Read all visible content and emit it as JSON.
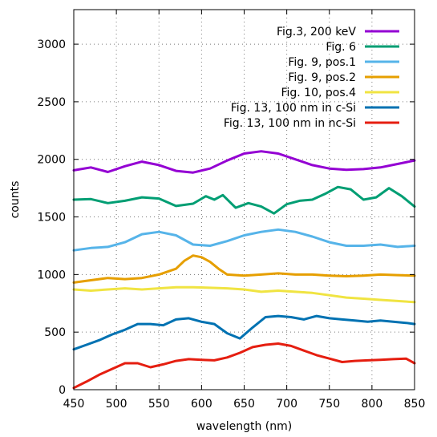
{
  "chart_data": {
    "type": "line",
    "title": "",
    "xlabel": "wavelength (nm)",
    "ylabel": "counts",
    "xlim": [
      450,
      850
    ],
    "ylim": [
      0,
      3300
    ],
    "xticks": [
      450,
      500,
      550,
      600,
      650,
      700,
      750,
      800,
      850
    ],
    "yticks": [
      0,
      500,
      1000,
      1500,
      2000,
      2500,
      3000
    ],
    "grid": true,
    "legend_position": "top-right",
    "series": [
      {
        "name": "Fig.3, 200 keV",
        "color": "#9400d3",
        "x": [
          450,
          470,
          490,
          510,
          530,
          550,
          570,
          590,
          610,
          630,
          650,
          670,
          690,
          710,
          730,
          750,
          770,
          790,
          810,
          830,
          850
        ],
        "y": [
          1905,
          1930,
          1890,
          1940,
          1980,
          1950,
          1900,
          1885,
          1920,
          1990,
          2050,
          2070,
          2050,
          2000,
          1950,
          1920,
          1910,
          1915,
          1930,
          1960,
          1990
        ]
      },
      {
        "name": "Fig. 6",
        "color": "#009e73",
        "x": [
          450,
          470,
          490,
          510,
          530,
          550,
          570,
          590,
          605,
          615,
          625,
          640,
          655,
          670,
          685,
          700,
          715,
          730,
          745,
          760,
          775,
          790,
          805,
          820,
          835,
          850
        ],
        "y": [
          1650,
          1655,
          1620,
          1640,
          1670,
          1660,
          1595,
          1615,
          1680,
          1650,
          1690,
          1580,
          1620,
          1590,
          1530,
          1610,
          1640,
          1650,
          1700,
          1760,
          1740,
          1650,
          1670,
          1750,
          1680,
          1590
        ]
      },
      {
        "name": "Fig. 9, pos.1",
        "color": "#56b4e9",
        "x": [
          450,
          470,
          490,
          510,
          530,
          550,
          570,
          590,
          610,
          630,
          650,
          670,
          690,
          710,
          730,
          750,
          770,
          790,
          810,
          830,
          850
        ],
        "y": [
          1210,
          1230,
          1240,
          1280,
          1350,
          1370,
          1340,
          1260,
          1250,
          1290,
          1340,
          1370,
          1390,
          1370,
          1330,
          1280,
          1250,
          1250,
          1260,
          1240,
          1250
        ]
      },
      {
        "name": "Fig. 9, pos.2",
        "color": "#e69f00",
        "x": [
          450,
          470,
          490,
          510,
          530,
          550,
          570,
          580,
          590,
          600,
          610,
          620,
          630,
          650,
          670,
          690,
          710,
          730,
          750,
          770,
          790,
          810,
          830,
          850
        ],
        "y": [
          930,
          950,
          970,
          960,
          970,
          1000,
          1050,
          1120,
          1165,
          1150,
          1110,
          1050,
          1000,
          990,
          1000,
          1010,
          1000,
          1000,
          990,
          985,
          990,
          1000,
          995,
          990
        ]
      },
      {
        "name": "Fig. 10, pos.4",
        "color": "#f0e442",
        "x": [
          450,
          470,
          490,
          510,
          530,
          550,
          570,
          590,
          610,
          630,
          650,
          670,
          690,
          710,
          730,
          750,
          770,
          790,
          810,
          830,
          850
        ],
        "y": [
          870,
          860,
          870,
          880,
          870,
          880,
          890,
          890,
          885,
          880,
          870,
          850,
          860,
          850,
          840,
          820,
          800,
          790,
          780,
          770,
          760
        ]
      },
      {
        "name": "Fig. 13, 100 nm in c-Si",
        "color": "#0072b2",
        "x": [
          450,
          465,
          480,
          495,
          510,
          525,
          540,
          555,
          570,
          585,
          600,
          615,
          630,
          645,
          660,
          675,
          690,
          705,
          720,
          735,
          750,
          765,
          780,
          795,
          810,
          825,
          840,
          850
        ],
        "y": [
          350,
          390,
          430,
          480,
          520,
          570,
          570,
          560,
          610,
          620,
          590,
          570,
          490,
          445,
          540,
          630,
          640,
          630,
          610,
          640,
          620,
          610,
          600,
          590,
          600,
          590,
          580,
          570
        ]
      },
      {
        "name": "Fig. 13, 100 nm in nc-Si",
        "color": "#e51e10",
        "x": [
          450,
          465,
          480,
          495,
          510,
          525,
          540,
          555,
          570,
          585,
          600,
          615,
          630,
          645,
          660,
          675,
          690,
          705,
          720,
          735,
          750,
          765,
          780,
          795,
          810,
          825,
          840,
          850
        ],
        "y": [
          15,
          70,
          130,
          180,
          230,
          230,
          195,
          220,
          250,
          265,
          260,
          255,
          280,
          320,
          370,
          390,
          400,
          380,
          340,
          300,
          270,
          240,
          250,
          255,
          260,
          265,
          270,
          230
        ]
      }
    ]
  }
}
